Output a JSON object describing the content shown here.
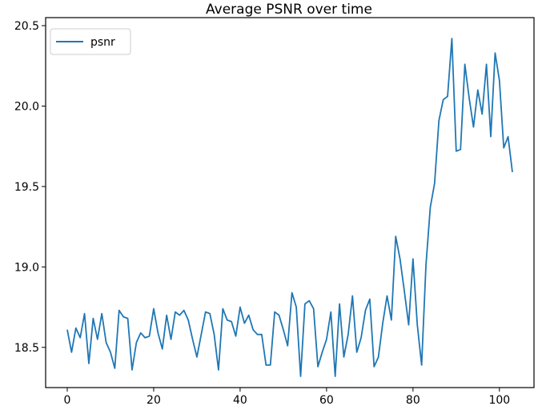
{
  "chart_data": {
    "type": "line",
    "title": "Average PSNR over time",
    "xlabel": "",
    "ylabel": "",
    "xlim": [
      -5,
      108
    ],
    "ylim": [
      18.25,
      20.55
    ],
    "x_ticks": [
      0,
      20,
      40,
      60,
      80,
      100
    ],
    "y_ticks": [
      18.5,
      19.0,
      19.5,
      20.0,
      20.5
    ],
    "x_tick_labels": [
      "0",
      "20",
      "40",
      "60",
      "80",
      "100"
    ],
    "y_tick_labels": [
      "18.5",
      "19.0",
      "19.5",
      "20.0",
      "20.5"
    ],
    "grid": false,
    "legend_position": "upper-left",
    "series": [
      {
        "name": "psnr",
        "color": "#1f77b4",
        "x": [
          0,
          1,
          2,
          3,
          4,
          5,
          6,
          7,
          8,
          9,
          10,
          11,
          12,
          13,
          14,
          15,
          16,
          17,
          18,
          19,
          20,
          21,
          22,
          23,
          24,
          25,
          26,
          27,
          28,
          29,
          30,
          31,
          32,
          33,
          34,
          35,
          36,
          37,
          38,
          39,
          40,
          41,
          42,
          43,
          44,
          45,
          46,
          47,
          48,
          49,
          50,
          51,
          52,
          53,
          54,
          55,
          56,
          57,
          58,
          59,
          60,
          61,
          62,
          63,
          64,
          65,
          66,
          67,
          68,
          69,
          70,
          71,
          72,
          73,
          74,
          75,
          76,
          77,
          78,
          79,
          80,
          81,
          82,
          83,
          84,
          85,
          86,
          87,
          88,
          89,
          90,
          91,
          92,
          93,
          94,
          95,
          96,
          97,
          98,
          99,
          100,
          101,
          102,
          103
        ],
        "values": [
          18.61,
          18.47,
          18.62,
          18.56,
          18.71,
          18.4,
          18.68,
          18.55,
          18.71,
          18.53,
          18.47,
          18.37,
          18.73,
          18.69,
          18.68,
          18.36,
          18.53,
          18.59,
          18.56,
          18.57,
          18.74,
          18.59,
          18.49,
          18.7,
          18.55,
          18.72,
          18.7,
          18.73,
          18.67,
          18.55,
          18.44,
          18.58,
          18.72,
          18.71,
          18.58,
          18.36,
          18.74,
          18.67,
          18.66,
          18.57,
          18.75,
          18.65,
          18.7,
          18.61,
          18.58,
          18.58,
          18.39,
          18.39,
          18.72,
          18.7,
          18.61,
          18.51,
          18.84,
          18.75,
          18.32,
          18.77,
          18.79,
          18.74,
          18.38,
          18.47,
          18.55,
          18.72,
          18.32,
          18.77,
          18.44,
          18.58,
          18.82,
          18.47,
          18.56,
          18.73,
          18.8,
          18.38,
          18.44,
          18.65,
          18.82,
          18.67,
          19.19,
          19.05,
          18.85,
          18.64,
          19.05,
          18.64,
          18.39,
          19.01,
          19.37,
          19.52,
          19.91,
          20.04,
          20.06,
          20.42,
          19.72,
          19.73,
          20.26,
          20.05,
          19.87,
          20.1,
          19.95,
          20.26,
          19.81,
          20.33,
          20.16,
          19.74,
          19.81,
          19.59
        ]
      }
    ]
  }
}
